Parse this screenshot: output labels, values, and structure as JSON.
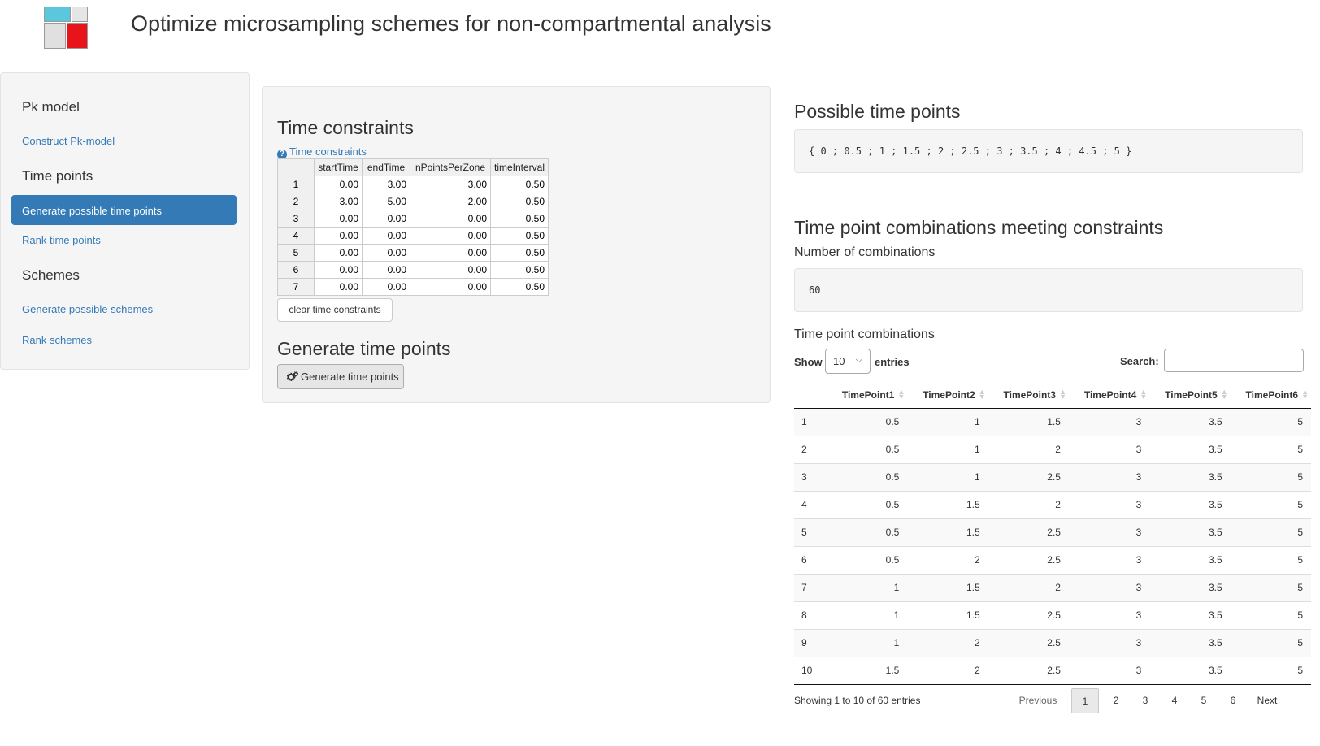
{
  "header": {
    "title": "Optimize microsampling schemes for non-compartmental analysis",
    "logo_colors": [
      "#5bc7dc",
      "#e5e5e5",
      "#e0e0e0",
      "#e8141c"
    ]
  },
  "sidebar": {
    "pk_heading": "Pk model",
    "construct_link": "Construct Pk-model",
    "time_heading": "Time points",
    "generate_active": "Generate possible time points",
    "rank_time_link": "Rank time points",
    "schemes_heading": "Schemes",
    "gen_schemes_link": "Generate possible schemes",
    "rank_schemes_link": "Rank schemes",
    "active_color": "#337ab7"
  },
  "constraints": {
    "title": "Time constraints",
    "help_icon": "question-circle-icon",
    "help_label": "Time constraints",
    "columns": [
      "",
      "startTime",
      "endTime",
      "nPointsPerZone",
      "timeInterval"
    ],
    "rows": [
      [
        "1",
        "0.00",
        "3.00",
        "3.00",
        "0.50"
      ],
      [
        "2",
        "3.00",
        "5.00",
        "2.00",
        "0.50"
      ],
      [
        "3",
        "0.00",
        "0.00",
        "0.00",
        "0.50"
      ],
      [
        "4",
        "0.00",
        "0.00",
        "0.00",
        "0.50"
      ],
      [
        "5",
        "0.00",
        "0.00",
        "0.00",
        "0.50"
      ],
      [
        "6",
        "0.00",
        "0.00",
        "0.00",
        "0.50"
      ],
      [
        "7",
        "0.00",
        "0.00",
        "0.00",
        "0.50"
      ]
    ],
    "clear_button": "clear time constraints"
  },
  "generate": {
    "title": "Generate time points",
    "button_icon": "gears-icon",
    "button_label": "Generate time points"
  },
  "possible": {
    "title": "Possible time points",
    "value": "{ 0 ; 0.5 ; 1 ; 1.5 ; 2 ; 2.5 ; 3 ; 3.5 ; 4 ; 4.5 ; 5 }"
  },
  "combinations": {
    "title": "Time point combinations meeting constraints",
    "count_label": "Number of combinations",
    "count_value": "60",
    "table_label": "Time point combinations",
    "show_label": "Show",
    "show_value": "10",
    "entries_label": "entries",
    "search_label": "Search:",
    "columns": [
      "",
      "TimePoint1",
      "TimePoint2",
      "TimePoint3",
      "TimePoint4",
      "TimePoint5",
      "TimePoint6"
    ],
    "rows": [
      [
        "1",
        "0.5",
        "1",
        "1.5",
        "3",
        "3.5",
        "5"
      ],
      [
        "2",
        "0.5",
        "1",
        "2",
        "3",
        "3.5",
        "5"
      ],
      [
        "3",
        "0.5",
        "1",
        "2.5",
        "3",
        "3.5",
        "5"
      ],
      [
        "4",
        "0.5",
        "1.5",
        "2",
        "3",
        "3.5",
        "5"
      ],
      [
        "5",
        "0.5",
        "1.5",
        "2.5",
        "3",
        "3.5",
        "5"
      ],
      [
        "6",
        "0.5",
        "2",
        "2.5",
        "3",
        "3.5",
        "5"
      ],
      [
        "7",
        "1",
        "1.5",
        "2",
        "3",
        "3.5",
        "5"
      ],
      [
        "8",
        "1",
        "1.5",
        "2.5",
        "3",
        "3.5",
        "5"
      ],
      [
        "9",
        "1",
        "2",
        "2.5",
        "3",
        "3.5",
        "5"
      ],
      [
        "10",
        "1.5",
        "2",
        "2.5",
        "3",
        "3.5",
        "5"
      ]
    ],
    "info": "Showing 1 to 10 of 60 entries",
    "pagination": {
      "previous": "Previous",
      "pages": [
        "1",
        "2",
        "3",
        "4",
        "5",
        "6"
      ],
      "next": "Next",
      "current": "1"
    }
  }
}
